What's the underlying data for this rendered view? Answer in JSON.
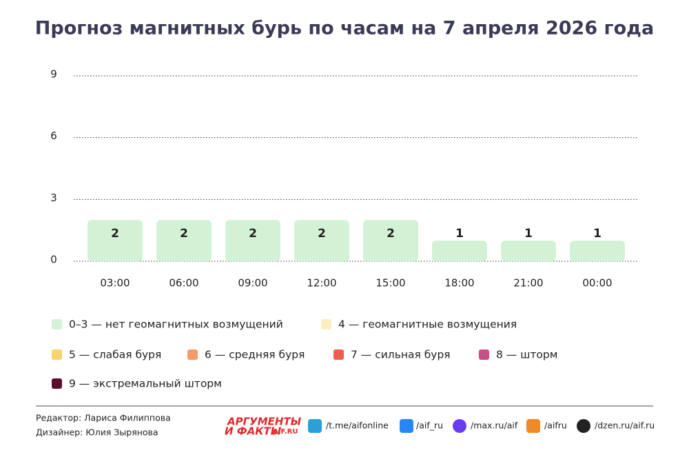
{
  "chart_data": {
    "type": "bar",
    "title": "Прогноз магнитных бурь по часам на 7 апреля 2026 года",
    "categories": [
      "03:00",
      "06:00",
      "09:00",
      "12:00",
      "15:00",
      "18:00",
      "21:00",
      "00:00"
    ],
    "values": [
      2,
      2,
      2,
      2,
      2,
      1,
      1,
      1
    ],
    "color": "#d3f2d5",
    "ylim": [
      0,
      9
    ],
    "yticks": [
      0,
      3,
      6,
      9
    ],
    "grid": true,
    "legend": [
      {
        "name": "0–3 — нет геомагнитных возмущений",
        "color": "#d3f2d5"
      },
      {
        "name": "4 — геомагнитные возмущения",
        "color": "#fdeec0"
      },
      {
        "name": "5 — слабая буря",
        "color": "#f9d46c"
      },
      {
        "name": "6 — средняя буря",
        "color": "#f79a6a"
      },
      {
        "name": "7 — сильная буря",
        "color": "#ef5d50"
      },
      {
        "name": "8 — шторм",
        "color": "#c94f86"
      },
      {
        "name": "9 — экстремальный шторм",
        "color": "#5c0c2e"
      }
    ]
  },
  "footer": {
    "editor": "Редактор: Лариса Филиппова",
    "designer": "Дизайнер: Юлия Зырянова",
    "logo_top": "АРГУМЕНТЫ",
    "logo_bottom": "И ФАКТЫ",
    "logo_site": "AIF.RU",
    "links": [
      "/t.me/aifonline",
      "/aif_ru",
      "/max.ru/aif",
      "/aifru",
      "/dzen.ru/aif.ru"
    ]
  }
}
